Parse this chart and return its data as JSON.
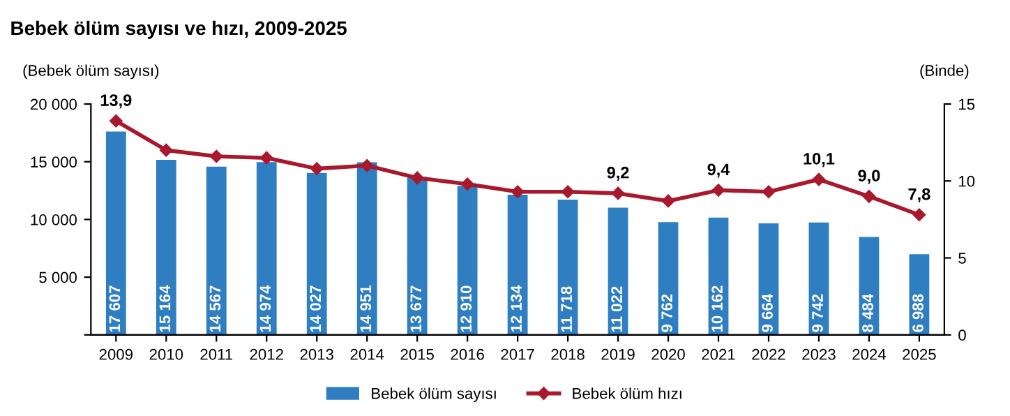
{
  "chart_data": {
    "type": "bar",
    "title": "Bebek ölüm sayısı ve hızı, 2009-2025",
    "ylabel": "(Bebek ölüm sayısı)",
    "y2label": "(Binde)",
    "categories": [
      "2009",
      "2010",
      "2011",
      "2012",
      "2013",
      "2014",
      "2015",
      "2016",
      "2017",
      "2018",
      "2019",
      "2020",
      "2021",
      "2022",
      "2023",
      "2024",
      "2025"
    ],
    "series": [
      {
        "name": "Bebek ölüm sayısı",
        "color": "#2e7ec1",
        "values": [
          17607,
          15164,
          14567,
          14974,
          14027,
          14951,
          13677,
          12910,
          12134,
          11718,
          11022,
          9762,
          10162,
          9664,
          9742,
          8484,
          6988
        ],
        "value_labels": [
          "17 607",
          "15 164",
          "14 567",
          "14 974",
          "14 027",
          "14 951",
          "13 677",
          "12 910",
          "12 134",
          "11 718",
          "11 022",
          "9 762",
          "10 162",
          "9 664",
          "9 742",
          "8 484",
          "6 988"
        ]
      },
      {
        "name": "Bebek ölüm hızı",
        "type": "line",
        "axis": "y2",
        "color": "#a8192e",
        "marker": "diamond",
        "values": [
          13.9,
          12.0,
          11.6,
          11.5,
          10.8,
          11.0,
          10.2,
          9.8,
          9.3,
          9.3,
          9.2,
          8.7,
          9.4,
          9.3,
          10.1,
          9.0,
          7.8
        ],
        "value_labels": [
          "13,9",
          null,
          null,
          null,
          null,
          null,
          null,
          null,
          null,
          null,
          "9,2",
          null,
          "9,4",
          null,
          "10,1",
          "9,0",
          "7,8"
        ]
      }
    ],
    "ylim": [
      0,
      20000
    ],
    "yticks": [
      {
        "value": 0,
        "label": null
      },
      {
        "value": 5000,
        "label": "5 000"
      },
      {
        "value": 10000,
        "label": "10 000"
      },
      {
        "value": 15000,
        "label": "15 000"
      },
      {
        "value": 20000,
        "label": "20 000"
      }
    ],
    "y2lim": [
      0,
      15
    ],
    "y2ticks": [
      0,
      5,
      10,
      15
    ],
    "legend": "bottom",
    "grid": false
  }
}
